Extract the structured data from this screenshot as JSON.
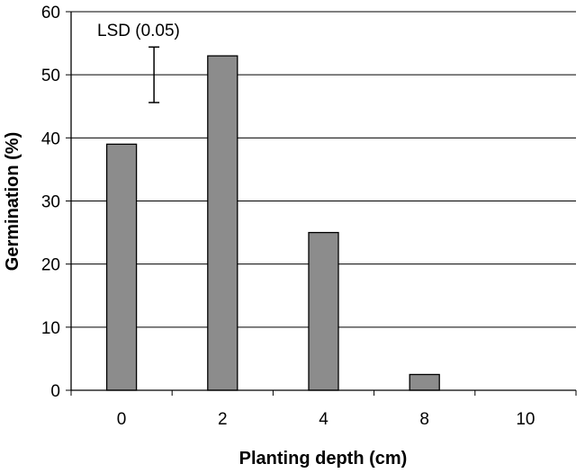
{
  "chart_data": {
    "type": "bar",
    "title": "",
    "xlabel": "Planting depth (cm)",
    "ylabel": "Germination (%)",
    "categories": [
      "0",
      "2",
      "4",
      "8",
      "10"
    ],
    "values": [
      39,
      53,
      25,
      2.5,
      0
    ],
    "ylim": [
      0,
      60
    ],
    "yticks": [
      0,
      10,
      20,
      30,
      40,
      50,
      60
    ],
    "ytick_labels": [
      "0",
      "10",
      "20",
      "30",
      "40",
      "50",
      "60"
    ],
    "grid": true,
    "legend": "none",
    "bar_color": "#8c8c8c",
    "annotation": {
      "label": "LSD (0.05)",
      "category": "0",
      "range": [
        45.6,
        54.4
      ]
    }
  }
}
